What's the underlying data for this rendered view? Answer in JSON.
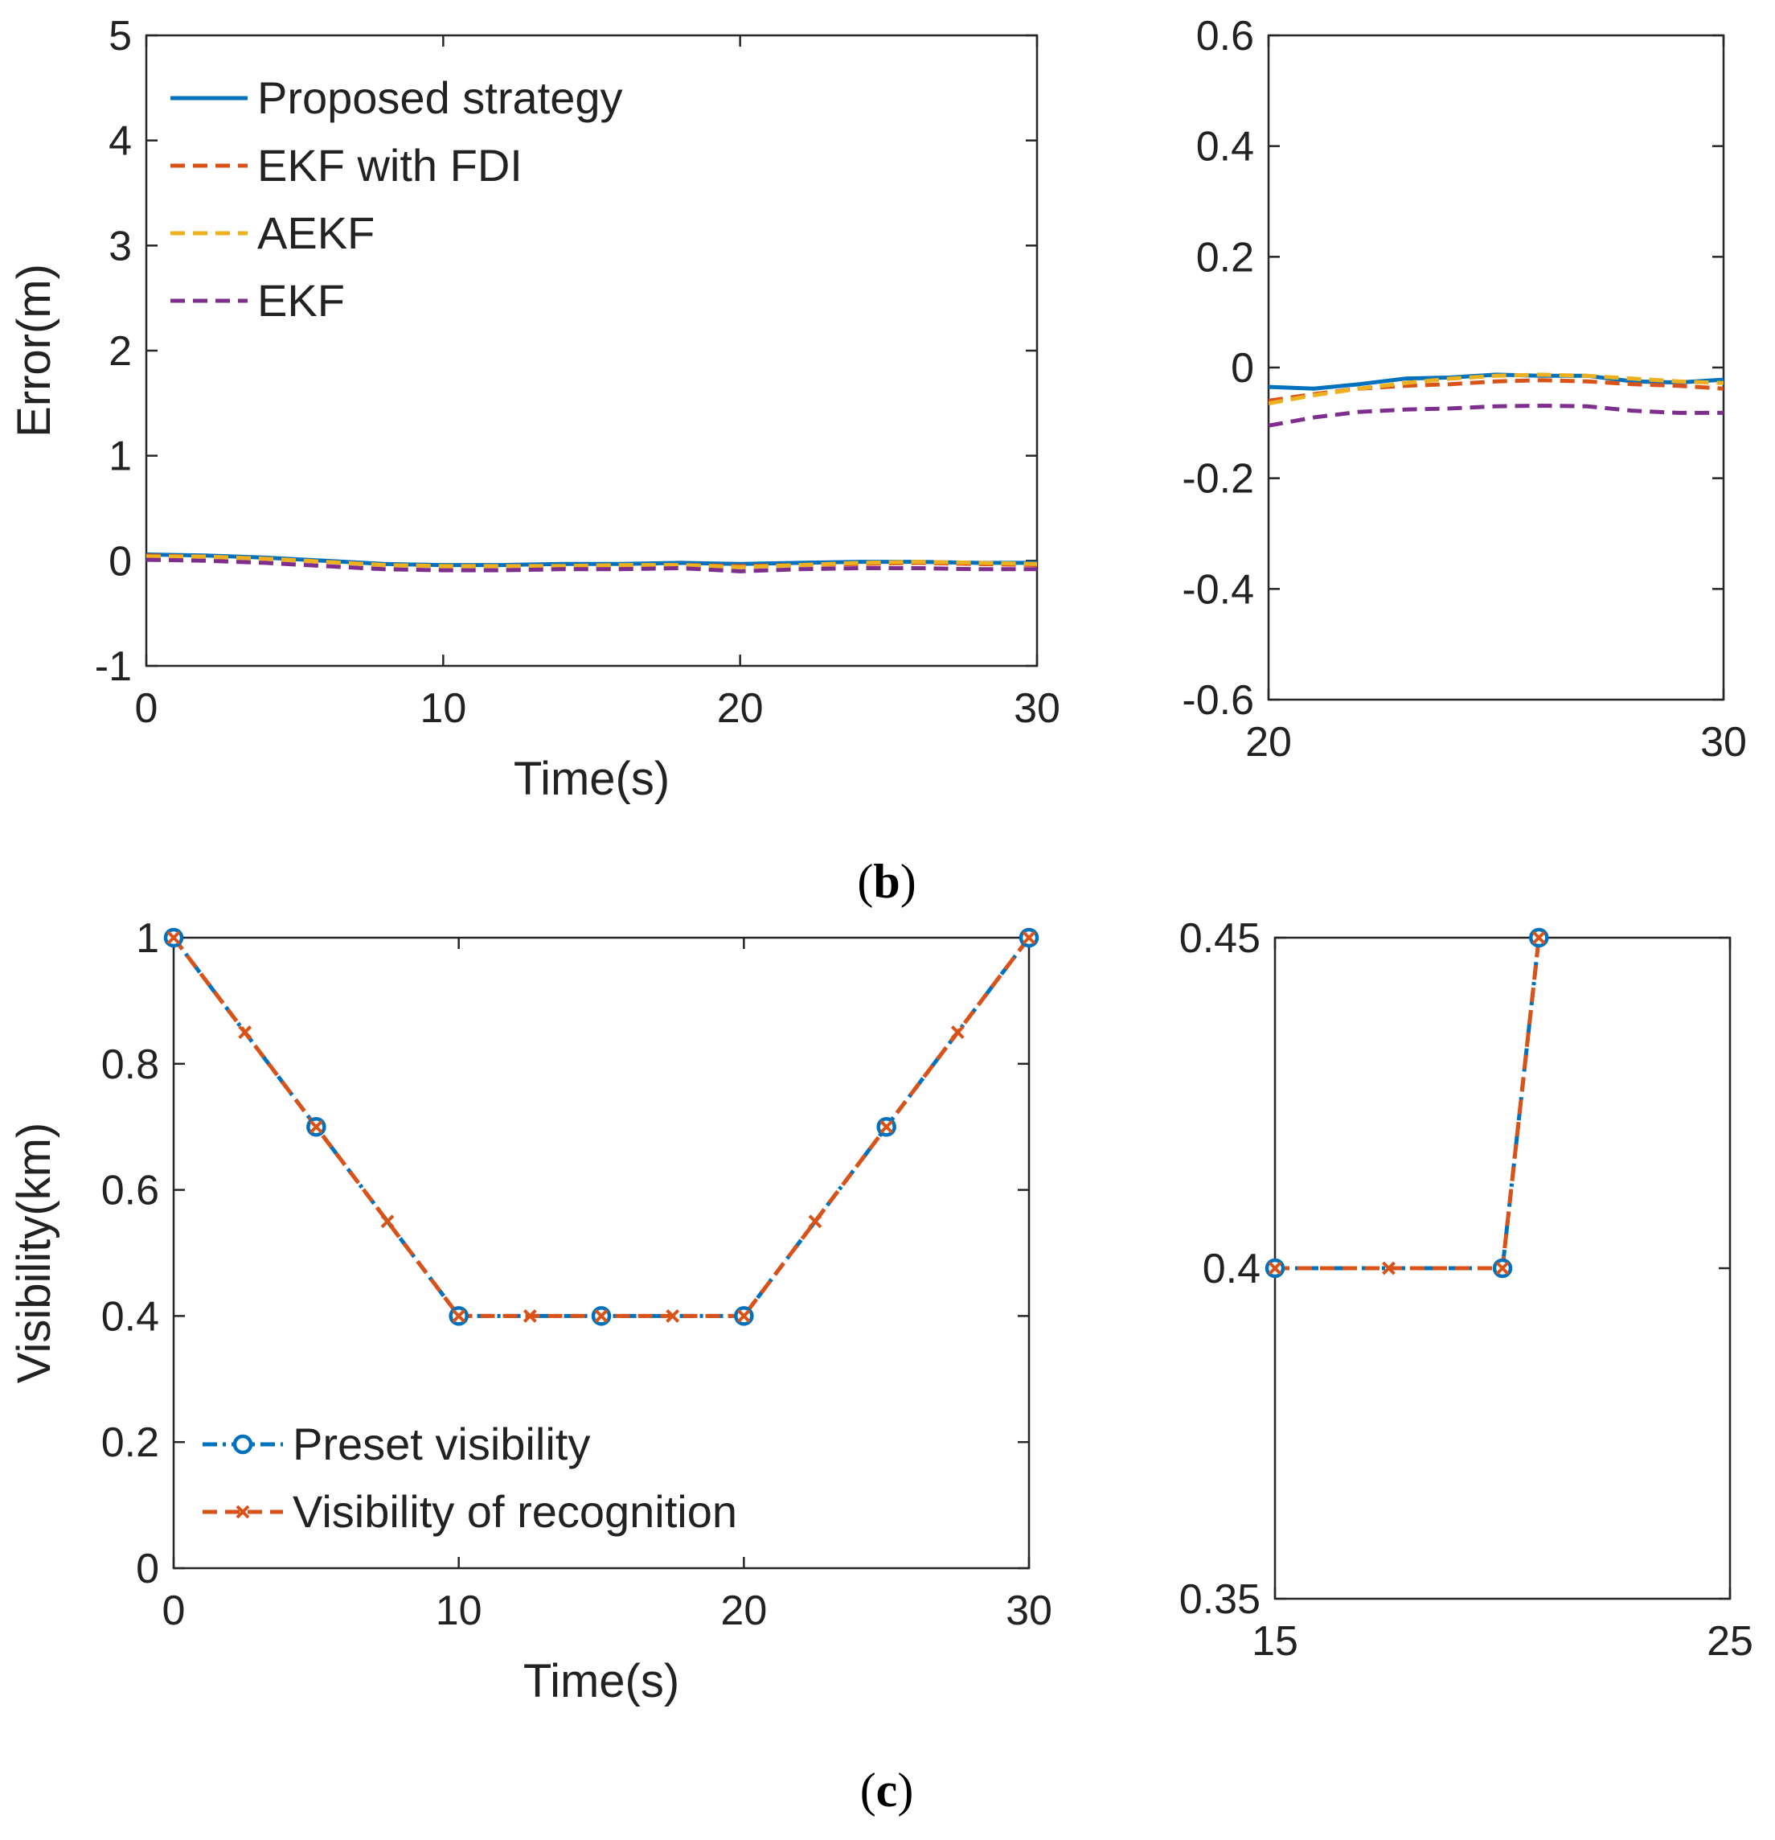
{
  "colors": {
    "blue": "#0072BD",
    "orange": "#D95319",
    "yellow": "#EDB120",
    "purple": "#7E2F8E",
    "axis": "#262626"
  },
  "panel_labels": {
    "b": {
      "open": "(",
      "letter": "b",
      "close": ")"
    },
    "c": {
      "open": "(",
      "letter": "c",
      "close": ")"
    }
  },
  "chart_data": [
    {
      "id": "b-main",
      "type": "line",
      "xlabel": "Time(s)",
      "ylabel": "Error(m)",
      "xlim": [
        0,
        30
      ],
      "ylim": [
        -1,
        5
      ],
      "xticks": [
        0,
        10,
        20,
        30
      ],
      "yticks": [
        -1,
        0,
        1,
        2,
        3,
        4,
        5
      ],
      "grid": false,
      "legend": "top-left",
      "series": [
        {
          "name": "Proposed strategy",
          "color": "blue",
          "style": "solid",
          "x": [
            0,
            2,
            4,
            6,
            8,
            10,
            12,
            14,
            16,
            18,
            20,
            22,
            24,
            26,
            28,
            30
          ],
          "y": [
            0.06,
            0.05,
            0.03,
            0.0,
            -0.03,
            -0.04,
            -0.04,
            -0.03,
            -0.03,
            -0.02,
            -0.03,
            -0.02,
            -0.01,
            -0.01,
            -0.02,
            -0.02
          ]
        },
        {
          "name": "EKF with FDI",
          "color": "orange",
          "style": "dashed",
          "x": [
            0,
            2,
            4,
            6,
            8,
            10,
            12,
            14,
            16,
            18,
            20,
            22,
            24,
            26,
            28,
            30
          ],
          "y": [
            0.05,
            0.04,
            0.02,
            -0.01,
            -0.04,
            -0.05,
            -0.05,
            -0.05,
            -0.05,
            -0.04,
            -0.05,
            -0.04,
            -0.03,
            -0.02,
            -0.03,
            -0.04
          ]
        },
        {
          "name": "AEKF",
          "color": "yellow",
          "style": "dashed",
          "x": [
            0,
            2,
            4,
            6,
            8,
            10,
            12,
            14,
            16,
            18,
            20,
            22,
            24,
            26,
            28,
            30
          ],
          "y": [
            0.04,
            0.04,
            0.02,
            -0.01,
            -0.04,
            -0.05,
            -0.05,
            -0.05,
            -0.04,
            -0.04,
            -0.06,
            -0.04,
            -0.02,
            -0.01,
            -0.02,
            -0.03
          ]
        },
        {
          "name": "EKF",
          "color": "purple",
          "style": "dashed",
          "x": [
            0,
            2,
            4,
            6,
            8,
            10,
            12,
            14,
            16,
            18,
            20,
            22,
            24,
            26,
            28,
            30
          ],
          "y": [
            0.01,
            0.0,
            -0.02,
            -0.05,
            -0.08,
            -0.09,
            -0.09,
            -0.08,
            -0.08,
            -0.07,
            -0.1,
            -0.08,
            -0.07,
            -0.07,
            -0.08,
            -0.08
          ]
        }
      ]
    },
    {
      "id": "b-zoom",
      "type": "line",
      "xlim": [
        20,
        30
      ],
      "ylim": [
        -0.6,
        0.6
      ],
      "xticks": [
        20,
        30
      ],
      "yticks": [
        -0.6,
        -0.4,
        -0.2,
        0,
        0.2,
        0.4,
        0.6
      ],
      "ytick_labels": [
        "-0.6",
        "-0.4",
        "-0.2",
        "0",
        "0.2",
        "0.4",
        "0.6"
      ],
      "grid": false,
      "series": [
        {
          "color": "blue",
          "style": "solid",
          "x": [
            20,
            21,
            22,
            23,
            24,
            25,
            26,
            27,
            28,
            29,
            30
          ],
          "y": [
            -0.035,
            -0.038,
            -0.03,
            -0.02,
            -0.018,
            -0.013,
            -0.015,
            -0.015,
            -0.025,
            -0.027,
            -0.022
          ]
        },
        {
          "color": "orange",
          "style": "dashed",
          "x": [
            20,
            21,
            22,
            23,
            24,
            25,
            26,
            27,
            28,
            29,
            30
          ],
          "y": [
            -0.06,
            -0.048,
            -0.038,
            -0.033,
            -0.03,
            -0.025,
            -0.023,
            -0.025,
            -0.03,
            -0.033,
            -0.038
          ]
        },
        {
          "color": "yellow",
          "style": "dashed",
          "x": [
            20,
            21,
            22,
            23,
            24,
            25,
            26,
            27,
            28,
            29,
            30
          ],
          "y": [
            -0.065,
            -0.05,
            -0.038,
            -0.028,
            -0.02,
            -0.015,
            -0.013,
            -0.015,
            -0.02,
            -0.025,
            -0.028
          ]
        },
        {
          "color": "purple",
          "style": "dashed",
          "x": [
            20,
            21,
            22,
            23,
            24,
            25,
            26,
            27,
            28,
            29,
            30
          ],
          "y": [
            -0.105,
            -0.09,
            -0.08,
            -0.076,
            -0.074,
            -0.07,
            -0.069,
            -0.07,
            -0.078,
            -0.082,
            -0.082
          ]
        }
      ]
    },
    {
      "id": "c-main",
      "type": "line",
      "xlabel": "Time(s)",
      "ylabel": "Visibility(km)",
      "xlim": [
        0,
        30
      ],
      "ylim": [
        0,
        1
      ],
      "xticks": [
        0,
        10,
        20,
        30
      ],
      "yticks": [
        0,
        0.2,
        0.4,
        0.6,
        0.8,
        1
      ],
      "ytick_labels": [
        "0",
        "0.2",
        "0.4",
        "0.6",
        "0.8",
        "1"
      ],
      "grid": false,
      "legend": "bottom-left",
      "series": [
        {
          "name": "Preset visibility",
          "color": "blue",
          "style": "dashdot",
          "marker": "circle",
          "x": [
            0,
            5,
            10,
            15,
            20,
            25,
            30
          ],
          "y": [
            1,
            0.7,
            0.4,
            0.4,
            0.4,
            0.7,
            1
          ]
        },
        {
          "name": "Visibility of recognition",
          "color": "orange",
          "style": "dashed",
          "marker": "x",
          "x": [
            0,
            2.5,
            5,
            7.5,
            10,
            12.5,
            15,
            17.5,
            20,
            22.5,
            25,
            27.5,
            30
          ],
          "y": [
            1,
            0.85,
            0.7,
            0.55,
            0.4,
            0.4,
            0.4,
            0.4,
            0.4,
            0.55,
            0.7,
            0.85,
            1
          ]
        }
      ]
    },
    {
      "id": "c-zoom",
      "type": "line",
      "xlim": [
        15,
        25
      ],
      "ylim": [
        0.35,
        0.45
      ],
      "xticks": [
        15,
        25
      ],
      "yticks": [
        0.35,
        0.4,
        0.45
      ],
      "ytick_labels": [
        "0.35",
        "0.4",
        "0.45"
      ],
      "grid": false,
      "series": [
        {
          "color": "blue",
          "style": "dashdot",
          "marker": "circle",
          "x": [
            15,
            20,
            20.8
          ],
          "y": [
            0.4,
            0.4,
            0.45
          ]
        },
        {
          "color": "orange",
          "style": "dashed",
          "marker": "x",
          "x": [
            15,
            17.5,
            20,
            20.8
          ],
          "y": [
            0.4,
            0.4,
            0.4,
            0.45
          ]
        }
      ]
    }
  ]
}
